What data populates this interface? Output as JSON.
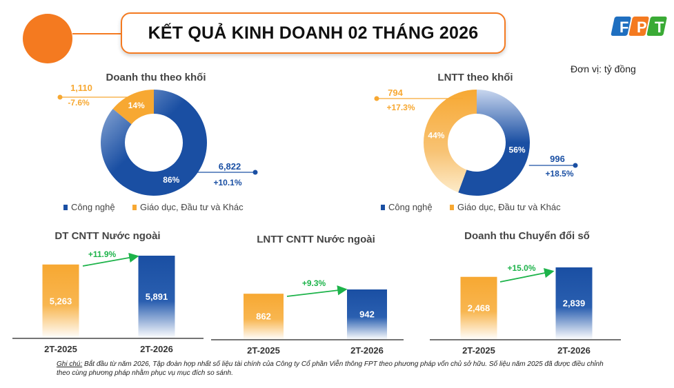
{
  "header": {
    "title": "KẾT QUẢ KINH DOANH 02 THÁNG 2026",
    "logo_text": "FPT",
    "unit": "Đơn vị: tỷ đồng"
  },
  "colors": {
    "blue": "#1a4fa3",
    "orange": "#f7a832",
    "green": "#1db34a",
    "accent": "#f47a20"
  },
  "chart_data": [
    {
      "type": "pie",
      "title": "Doanh thu theo khối",
      "slices": [
        {
          "name": "Công nghệ",
          "value": 6822,
          "value_label": "6,822",
          "share": "86%",
          "growth": "+10.1%"
        },
        {
          "name": "Giáo dục, Đầu tư và Khác",
          "value": 1110,
          "value_label": "1,110",
          "share": "14%",
          "growth": "-7.6%"
        }
      ]
    },
    {
      "type": "pie",
      "title": "LNTT theo khối",
      "slices": [
        {
          "name": "Công nghệ",
          "value": 996,
          "value_label": "996",
          "share": "56%",
          "growth": "+18.5%"
        },
        {
          "name": "Giáo dục, Đầu tư và Khác",
          "value": 794,
          "value_label": "794",
          "share": "44%",
          "growth": "+17.3%"
        }
      ]
    },
    {
      "type": "bar",
      "title": "DT CNTT Nước ngoài",
      "categories": [
        "2T-2025",
        "2T-2026"
      ],
      "values": [
        5263,
        5891
      ],
      "value_labels": [
        "5,263",
        "5,891"
      ],
      "growth": "+11.9%"
    },
    {
      "type": "bar",
      "title": "LNTT CNTT Nước ngoài",
      "categories": [
        "2T-2025",
        "2T-2026"
      ],
      "values": [
        862,
        942
      ],
      "value_labels": [
        "862",
        "942"
      ],
      "growth": "+9.3%"
    },
    {
      "type": "bar",
      "title": "Doanh thu Chuyển đổi số",
      "categories": [
        "2T-2025",
        "2T-2026"
      ],
      "values": [
        2468,
        2839
      ],
      "value_labels": [
        "2,468",
        "2,839"
      ],
      "growth": "+15.0%"
    }
  ],
  "note": {
    "label": "Ghi chú:",
    "text": " Bắt đầu từ năm 2026, Tập đoàn hợp nhất số liệu tài chính của Công ty Cổ phần Viễn thông FPT theo phương pháp vốn chủ sở hữu. Số liệu năm 2025 đã được điều chỉnh theo cùng phương pháp nhằm phục vụ mục đích so sánh."
  }
}
